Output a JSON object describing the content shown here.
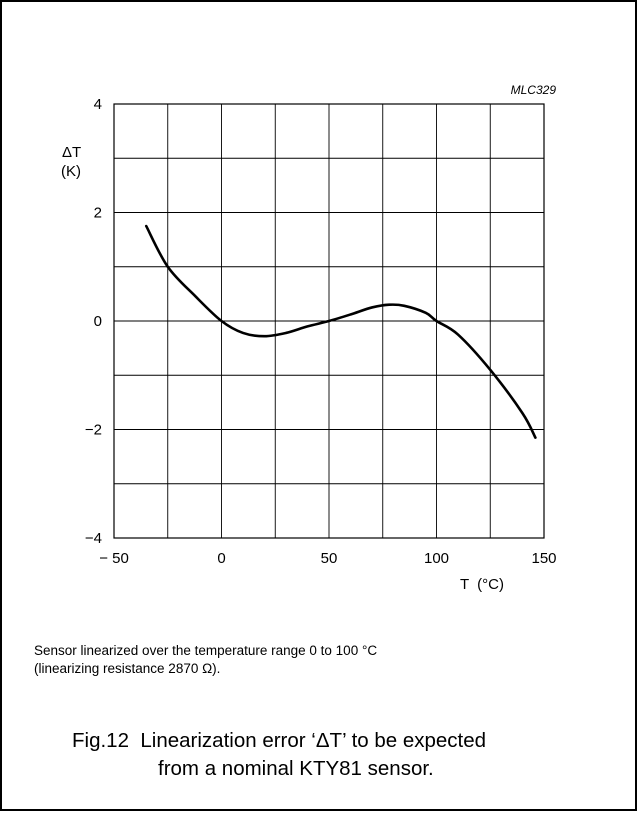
{
  "figure_code": "MLC329",
  "y_axis_label": {
    "symbol": "ΔT",
    "unit": "(K)"
  },
  "x_axis_label": {
    "symbol": "T",
    "unit": "(°C)"
  },
  "note_lines": [
    "Sensor linearized over the temperature range 0 to 100 °C",
    "(linearizing resistance 2870 Ω)."
  ],
  "caption": {
    "number": "Fig.12",
    "line1": "Linearization error ‘ΔT’ to be expected",
    "line2": "from a nominal KTY81 sensor."
  },
  "chart_data": {
    "type": "line",
    "title": "",
    "xlabel": "T (°C)",
    "ylabel": "ΔT (K)",
    "xlim": [
      -50,
      150
    ],
    "ylim": [
      -4,
      4
    ],
    "x_ticks": [
      {
        "value": -50,
        "label": "− 50"
      },
      {
        "value": 0,
        "label": "0"
      },
      {
        "value": 50,
        "label": "50"
      },
      {
        "value": 100,
        "label": "100"
      },
      {
        "value": 150,
        "label": "150"
      }
    ],
    "y_ticks": [
      {
        "value": 4,
        "label": "4"
      },
      {
        "value": 2,
        "label": "2"
      },
      {
        "value": 0,
        "label": "0"
      },
      {
        "value": -2,
        "label": "−2"
      },
      {
        "value": -4,
        "label": "−4"
      }
    ],
    "grid": true,
    "grid_x_step": 25,
    "grid_y_step": 1,
    "series": [
      {
        "x": [
          -35,
          -25,
          -12,
          0,
          10,
          20,
          30,
          40,
          50,
          60,
          70,
          78,
          85,
          95,
          100,
          110,
          125,
          140,
          146
        ],
        "y": [
          1.75,
          1.0,
          0.45,
          0.0,
          -0.22,
          -0.28,
          -0.22,
          -0.1,
          0.0,
          0.12,
          0.25,
          0.3,
          0.28,
          0.15,
          0.0,
          -0.25,
          -0.9,
          -1.7,
          -2.15
        ]
      }
    ]
  }
}
